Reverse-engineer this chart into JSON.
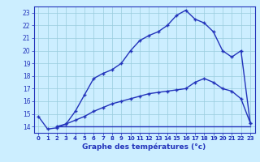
{
  "line1_x": [
    0,
    1,
    2,
    3,
    4,
    5,
    6,
    7,
    8,
    9,
    10,
    11,
    12,
    13,
    14,
    15,
    16,
    17,
    18,
    19,
    20,
    21,
    22,
    23
  ],
  "line1_y": [
    14.8,
    13.8,
    13.9,
    14.2,
    15.2,
    16.5,
    17.8,
    18.2,
    18.5,
    19.0,
    20.0,
    20.8,
    21.2,
    21.5,
    22.0,
    22.8,
    23.2,
    22.5,
    22.2,
    21.5,
    20.0,
    19.5,
    20.0,
    14.3
  ],
  "line2_x": [
    2,
    23
  ],
  "line2_y": [
    14.0,
    14.0
  ],
  "line3_x": [
    2,
    3,
    4,
    5,
    6,
    7,
    8,
    9,
    10,
    11,
    12,
    13,
    14,
    15,
    16,
    17,
    18,
    19,
    20,
    21,
    22,
    23
  ],
  "line3_y": [
    14.0,
    14.2,
    14.5,
    14.8,
    15.2,
    15.5,
    15.8,
    16.0,
    16.2,
    16.4,
    16.6,
    16.7,
    16.8,
    16.9,
    17.0,
    17.5,
    17.8,
    17.5,
    17.0,
    16.8,
    16.2,
    14.3
  ],
  "line_color": "#2233bb",
  "bg_color": "#cceeff",
  "grid_color": "#99ccdd",
  "xlabel": "Graphe des températures (°c)",
  "xlim": [
    -0.5,
    23.5
  ],
  "ylim": [
    13.5,
    23.5
  ],
  "yticks": [
    14,
    15,
    16,
    17,
    18,
    19,
    20,
    21,
    22,
    23
  ],
  "xticks": [
    0,
    1,
    2,
    3,
    4,
    5,
    6,
    7,
    8,
    9,
    10,
    11,
    12,
    13,
    14,
    15,
    16,
    17,
    18,
    19,
    20,
    21,
    22,
    23
  ]
}
